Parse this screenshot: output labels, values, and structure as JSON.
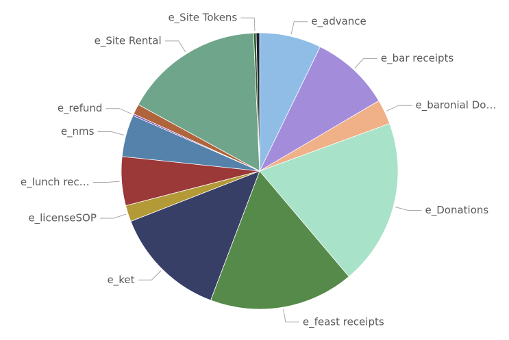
{
  "chart_data": {
    "type": "pie",
    "categories": [
      "e_advance",
      "e_bar receipts",
      "e_baronial Do…",
      "e_Donations",
      "e_feast receipts",
      "e_ket",
      "e_licenseSOP",
      "e_lunch rec…",
      "e_nms",
      "e_refund",
      null,
      "e_Site Rental",
      "e_Site Tokens",
      null
    ],
    "values": [
      7.2,
      9.3,
      2.9,
      19.4,
      16.9,
      13.3,
      1.9,
      5.7,
      4.9,
      0.2,
      1.2,
      16.3,
      0.3,
      0.4
    ],
    "colors": [
      "#8fbde6",
      "#a38ddb",
      "#f0b088",
      "#a8e2c8",
      "#568a4a",
      "#383f66",
      "#b39a37",
      "#9b3838",
      "#5582ab",
      "#7b4fb0",
      "#b0643c",
      "#6fa58a",
      "#2e5e2e",
      "#1a2030"
    ]
  }
}
